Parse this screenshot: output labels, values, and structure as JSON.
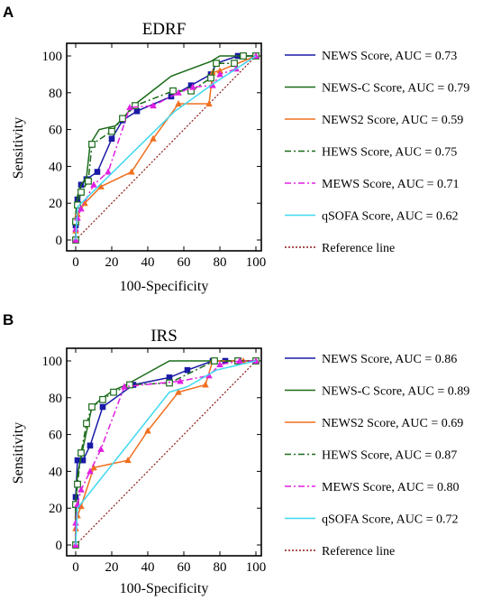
{
  "chart_data": [
    {
      "type": "line",
      "panel": "A",
      "title": "EDRF",
      "xlabel": "100-Specificity",
      "ylabel": "Sensitivity",
      "xlim": [
        0,
        100
      ],
      "ylim": [
        0,
        100
      ],
      "xticks": [
        "0",
        "20",
        "40",
        "60",
        "80",
        "100"
      ],
      "yticks": [
        "0",
        "20",
        "40",
        "60",
        "80",
        "100"
      ],
      "legend_position": "right",
      "series": [
        {
          "name": "NEWS Score, AUC = 0.73",
          "color": "#1a1aa6",
          "dash": "solid",
          "marker": "square-filled",
          "x": [
            0,
            0,
            1,
            3,
            6,
            12,
            20,
            26,
            34,
            53,
            64,
            75,
            78,
            90,
            93,
            100
          ],
          "y": [
            0,
            8,
            22,
            30,
            33,
            37,
            55,
            65,
            70,
            78,
            84,
            90,
            96,
            100,
            100,
            100
          ]
        },
        {
          "name": "NEWS-C Score, AUC = 0.79",
          "color": "#1a6b1a",
          "dash": "solid",
          "marker": "none",
          "x": [
            0,
            0,
            1,
            3,
            6,
            8,
            13,
            22,
            27,
            32,
            53,
            75,
            80,
            88,
            100
          ],
          "y": [
            0,
            14,
            24,
            30,
            34,
            52,
            60,
            62,
            67,
            73,
            89,
            97,
            100,
            100,
            100
          ]
        },
        {
          "name": "NEWS2 Score, AUC = 0.59",
          "color": "#f07020",
          "dash": "solid",
          "marker": "triangle",
          "x": [
            0,
            0,
            1,
            5,
            14,
            31,
            43,
            57,
            74,
            76,
            80,
            100
          ],
          "y": [
            0,
            5,
            14,
            20,
            29,
            37,
            55,
            74,
            74,
            91,
            92,
            100
          ]
        },
        {
          "name": "HEWS Score, AUC = 0.75",
          "color": "#1a6b1a",
          "dash": "dashdot",
          "marker": "square-open",
          "x": [
            0,
            0,
            1,
            3,
            7,
            9,
            20,
            26,
            33,
            54,
            64,
            75,
            78,
            88,
            93,
            100
          ],
          "y": [
            0,
            10,
            19,
            26,
            32,
            52,
            59,
            66,
            73,
            81,
            81,
            88,
            96,
            96,
            100,
            100
          ]
        },
        {
          "name": "MEWS Score, AUC = 0.71",
          "color": "#e020e0",
          "dash": "dashdot",
          "marker": "triangle",
          "x": [
            0,
            0,
            1,
            3,
            10,
            18,
            30,
            43,
            57,
            65,
            76,
            80,
            89,
            100
          ],
          "y": [
            0,
            6,
            12,
            17,
            30,
            37,
            72,
            73,
            80,
            83,
            84,
            90,
            93,
            100
          ]
        },
        {
          "name": "qSOFA Score, AUC = 0.62",
          "color": "#40d8f0",
          "dash": "solid",
          "marker": "none",
          "x": [
            0,
            1,
            55,
            58,
            75,
            100
          ],
          "y": [
            0,
            18,
            70,
            72,
            84,
            100
          ]
        },
        {
          "name": "Reference line",
          "color": "#8b1a1a",
          "dash": "dotted",
          "marker": "none",
          "x": [
            0,
            100
          ],
          "y": [
            0,
            100
          ]
        }
      ]
    },
    {
      "type": "line",
      "panel": "B",
      "title": "IRS",
      "xlabel": "100-Specificity",
      "ylabel": "Sensitivity",
      "xlim": [
        0,
        100
      ],
      "ylim": [
        0,
        100
      ],
      "xticks": [
        "0",
        "20",
        "40",
        "60",
        "80",
        "100"
      ],
      "yticks": [
        "0",
        "20",
        "40",
        "60",
        "80",
        "100"
      ],
      "legend_position": "right",
      "series": [
        {
          "name": "NEWS Score, AUC = 0.86",
          "color": "#1a1aa6",
          "dash": "solid",
          "marker": "square-filled",
          "x": [
            0,
            0,
            1,
            4,
            8,
            15,
            32,
            52,
            62,
            76,
            83,
            90,
            100
          ],
          "y": [
            0,
            26,
            46,
            46,
            54,
            75,
            87,
            91,
            95,
            100,
            100,
            100,
            100
          ]
        },
        {
          "name": "NEWS-C Score, AUC = 0.89",
          "color": "#1a6b1a",
          "dash": "solid",
          "marker": "none",
          "x": [
            0,
            0,
            1,
            3,
            7,
            9,
            15,
            21,
            28,
            52,
            85,
            100
          ],
          "y": [
            0,
            23,
            38,
            48,
            66,
            75,
            80,
            84,
            87,
            100,
            100,
            100
          ]
        },
        {
          "name": "NEWS2 Score, AUC = 0.69",
          "color": "#f07020",
          "dash": "solid",
          "marker": "triangle",
          "x": [
            0,
            0,
            1,
            3,
            10,
            29,
            40,
            57,
            72,
            76,
            93,
            100
          ],
          "y": [
            0,
            9,
            16,
            21,
            42,
            46,
            62,
            83,
            87,
            100,
            100,
            100
          ]
        },
        {
          "name": "HEWS Score, AUC = 0.87",
          "color": "#1a6b1a",
          "dash": "dashdot",
          "marker": "square-open",
          "x": [
            0,
            0,
            1,
            3,
            6,
            9,
            15,
            21,
            30,
            52,
            77,
            90,
            100
          ],
          "y": [
            0,
            22,
            33,
            50,
            66,
            75,
            79,
            83,
            87,
            88,
            100,
            100,
            100
          ]
        },
        {
          "name": "MEWS Score, AUC = 0.80",
          "color": "#e020e0",
          "dash": "dashdot",
          "marker": "triangle",
          "x": [
            0,
            0,
            1,
            3,
            8,
            14,
            27,
            58,
            74,
            80,
            91,
            100
          ],
          "y": [
            0,
            12,
            22,
            30,
            40,
            52,
            86,
            89,
            92,
            98,
            100,
            100
          ]
        },
        {
          "name": "qSOFA Score, AUC = 0.72",
          "color": "#40d8f0",
          "dash": "solid",
          "marker": "none",
          "x": [
            0,
            1,
            52,
            62,
            78,
            100
          ],
          "y": [
            0,
            20,
            83,
            86,
            95,
            100
          ]
        },
        {
          "name": "Reference line",
          "color": "#8b1a1a",
          "dash": "dotted",
          "marker": "none",
          "x": [
            0,
            100
          ],
          "y": [
            0,
            100
          ]
        }
      ]
    }
  ]
}
